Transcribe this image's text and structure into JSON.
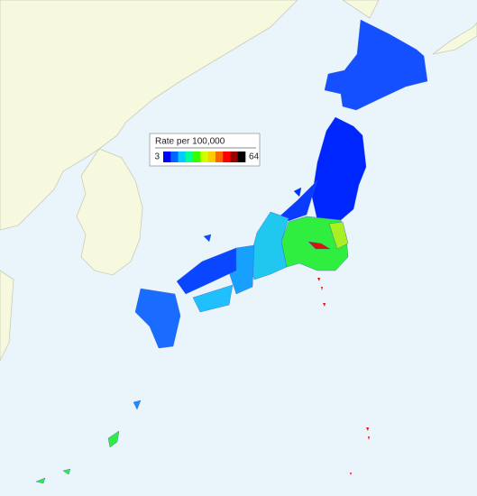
{
  "legend": {
    "title": "Rate per 100,000",
    "min": "3",
    "max": "64",
    "colors": [
      "#0000ff",
      "#0066ff",
      "#00ccff",
      "#00ff99",
      "#33ff00",
      "#ccff00",
      "#ffcc00",
      "#ff6600",
      "#ff0000",
      "#990000",
      "#000000"
    ]
  }
}
